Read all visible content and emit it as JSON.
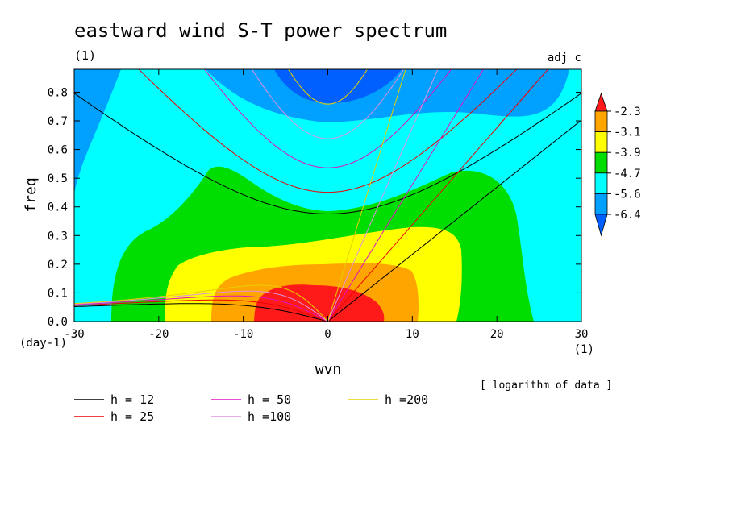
{
  "chart_data": {
    "type": "heatmap",
    "title": "eastward wind S-T power spectrum",
    "title_units": "(1)",
    "subtitle_right": "adj_c",
    "xlabel": "wvn",
    "ylabel": "freq",
    "x_units": "(1)",
    "y_units": "(day-1)",
    "note": "[ logarithm of data ]",
    "xlim": [
      -30,
      30
    ],
    "ylim": [
      0,
      0.88
    ],
    "x_ticks": [
      -30,
      -20,
      -10,
      0,
      10,
      20,
      30
    ],
    "y_ticks": [
      0.0,
      0.1,
      0.2,
      0.3,
      0.4,
      0.5,
      0.6,
      0.7,
      0.8
    ],
    "color_levels": {
      "labels": [
        "-2.3",
        "-3.1",
        "-3.9",
        "-4.7",
        "-5.6",
        "-6.4"
      ],
      "bands": [
        {
          "range": "> -2.3",
          "color": "#ff1a1a"
        },
        {
          "range": "-3.1 .. -2.3",
          "color": "#ffa500"
        },
        {
          "range": "-3.9 .. -3.1",
          "color": "#ffff00"
        },
        {
          "range": "-4.7 .. -3.9",
          "color": "#00dd00"
        },
        {
          "range": "-5.6 .. -4.7",
          "color": "#00ffff"
        },
        {
          "range": "-6.4 .. -5.6",
          "color": "#00a0ff"
        },
        {
          "range": "< -6.4",
          "color": "#0060ff"
        }
      ]
    },
    "dispersion_curves": [
      {
        "name": "h = 12",
        "h": 12,
        "color": "#000000"
      },
      {
        "name": "h = 25",
        "h": 25,
        "color": "#ee0000"
      },
      {
        "name": "h = 50",
        "h": 50,
        "color": "#e010c0"
      },
      {
        "name": "h =100",
        "h": 100,
        "color": "#e090e0"
      },
      {
        "name": "h =200",
        "h": 200,
        "color": "#e8d000"
      }
    ]
  }
}
